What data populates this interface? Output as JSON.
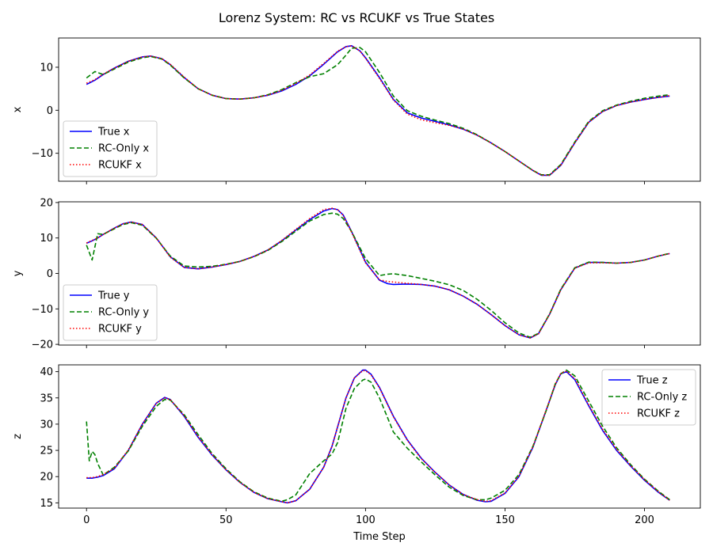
{
  "chart_data": {
    "type": "line",
    "title": "Lorenz System: RC vs RCUKF vs True States",
    "xlabel": "Time Step",
    "xlim": [
      -10,
      220
    ],
    "xticks": [
      0,
      50,
      100,
      150,
      200
    ],
    "sharex": true,
    "grid": false,
    "colors": {
      "true": "#0000ff",
      "rc_only": "#008000",
      "rcukf": "#ff0000"
    },
    "panels": [
      {
        "ylabel": "x",
        "ylim": [
          -16.5,
          16.8
        ],
        "yticks": [
          -10,
          0,
          10
        ],
        "legend_position": "lower-left",
        "x": [
          0,
          3,
          6,
          10,
          15,
          20,
          23,
          27,
          30,
          35,
          40,
          45,
          50,
          55,
          60,
          65,
          70,
          75,
          80,
          85,
          90,
          93,
          95,
          98,
          100,
          105,
          110,
          115,
          120,
          125,
          130,
          135,
          140,
          145,
          150,
          155,
          160,
          163,
          166,
          170,
          175,
          180,
          185,
          190,
          195,
          200,
          205,
          209
        ],
        "series": [
          {
            "name": "True x",
            "style": "solid",
            "values": [
              6.0,
              7.0,
              8.3,
              9.8,
              11.4,
              12.4,
              12.6,
              12.0,
              10.6,
              7.6,
              5.0,
              3.5,
              2.7,
              2.6,
              2.9,
              3.5,
              4.5,
              6.0,
              8.0,
              10.7,
              13.6,
              14.8,
              15.0,
              13.8,
              12.2,
              7.6,
              2.5,
              -0.6,
              -1.8,
              -2.6,
              -3.4,
              -4.4,
              -5.8,
              -7.6,
              -9.6,
              -11.8,
              -14.0,
              -15.1,
              -15.1,
              -12.8,
              -7.6,
              -2.8,
              -0.3,
              1.1,
              1.9,
              2.5,
              3.0,
              3.3
            ]
          },
          {
            "name": "RC-Only x",
            "style": "dashed",
            "values": [
              7.5,
              9.0,
              8.3,
              9.6,
              11.2,
              12.2,
              12.5,
              11.9,
              10.5,
              7.5,
              5.0,
              3.5,
              2.7,
              2.6,
              2.9,
              3.6,
              4.8,
              6.4,
              7.8,
              8.5,
              10.6,
              12.8,
              14.4,
              14.6,
              13.6,
              8.8,
              3.3,
              -0.1,
              -1.4,
              -2.3,
              -3.1,
              -4.2,
              -5.7,
              -7.6,
              -9.6,
              -11.8,
              -14.0,
              -15.0,
              -15.0,
              -12.6,
              -7.4,
              -2.6,
              -0.1,
              1.2,
              2.1,
              2.8,
              3.3,
              3.6
            ]
          },
          {
            "name": "RCUKF x",
            "style": "dotted",
            "values": [
              6.3,
              7.1,
              8.4,
              9.8,
              11.4,
              12.4,
              12.6,
              12.0,
              10.7,
              7.7,
              5.0,
              3.5,
              2.7,
              2.6,
              2.9,
              3.5,
              4.6,
              6.2,
              8.2,
              10.9,
              13.7,
              14.8,
              15.0,
              13.8,
              12.1,
              7.4,
              2.4,
              -0.9,
              -2.2,
              -2.9,
              -3.5,
              -4.4,
              -5.8,
              -7.6,
              -9.6,
              -11.8,
              -14.0,
              -15.1,
              -15.1,
              -12.8,
              -7.6,
              -2.8,
              -0.3,
              1.1,
              1.9,
              2.5,
              3.0,
              3.4
            ]
          }
        ]
      },
      {
        "ylabel": "y",
        "ylim": [
          -20.2,
          20.2
        ],
        "yticks": [
          -20,
          -10,
          0,
          10,
          20
        ],
        "legend_position": "lower-left",
        "x": [
          0,
          2,
          4,
          6,
          10,
          13,
          16,
          20,
          25,
          30,
          35,
          40,
          45,
          50,
          55,
          60,
          65,
          70,
          75,
          80,
          85,
          88,
          90,
          92,
          95,
          100,
          105,
          108,
          110,
          115,
          120,
          125,
          130,
          135,
          140,
          145,
          150,
          155,
          159,
          162,
          166,
          170,
          175,
          180,
          185,
          190,
          195,
          200,
          205,
          209
        ],
        "series": [
          {
            "name": "True y",
            "style": "solid",
            "values": [
              8.5,
              9.2,
              10.0,
              11.0,
              12.8,
              14.0,
              14.5,
              13.8,
              10.0,
              4.7,
              1.7,
              1.3,
              1.8,
              2.5,
              3.4,
              4.8,
              6.6,
              9.2,
              12.2,
              15.2,
              17.6,
              18.3,
              18.0,
              16.5,
              11.8,
              3.2,
              -1.9,
              -2.9,
              -3.1,
              -3.0,
              -3.1,
              -3.6,
              -4.6,
              -6.4,
              -8.7,
              -11.6,
              -14.7,
              -17.3,
              -18.2,
              -17.0,
              -11.5,
              -4.6,
              1.5,
              3.1,
              3.1,
              2.9,
              3.1,
              3.8,
              4.9,
              5.6
            ]
          },
          {
            "name": "RC-Only y",
            "style": "dashed",
            "values": [
              8.0,
              3.8,
              11.2,
              11.0,
              12.6,
              13.8,
              14.3,
              13.6,
              9.9,
              4.9,
              2.1,
              1.8,
              2.0,
              2.6,
              3.4,
              4.7,
              6.5,
              9.0,
              11.9,
              14.8,
              16.6,
              17.0,
              16.7,
              15.5,
              11.8,
              4.2,
              -0.6,
              -0.2,
              -0.1,
              -0.6,
              -1.4,
              -2.2,
              -3.2,
              -4.8,
              -7.3,
              -10.4,
              -13.9,
              -16.8,
              -18.0,
              -16.9,
              -11.4,
              -4.4,
              1.6,
              3.2,
              3.1,
              2.9,
              3.1,
              3.8,
              4.9,
              5.7
            ]
          },
          {
            "name": "RCUKF y",
            "style": "dotted",
            "values": [
              8.6,
              9.3,
              10.0,
              11.0,
              12.8,
              14.0,
              14.5,
              13.8,
              10.0,
              4.6,
              1.7,
              1.3,
              1.8,
              2.5,
              3.4,
              4.8,
              6.6,
              9.3,
              12.4,
              15.5,
              18.0,
              18.4,
              18.0,
              16.4,
              11.6,
              3.0,
              -1.8,
              -2.3,
              -2.4,
              -2.8,
              -3.1,
              -3.6,
              -4.6,
              -6.4,
              -8.7,
              -11.6,
              -14.7,
              -17.3,
              -18.2,
              -17.0,
              -11.5,
              -4.6,
              1.5,
              3.0,
              3.0,
              2.9,
              3.1,
              3.8,
              4.9,
              5.6
            ]
          }
        ]
      },
      {
        "ylabel": "z",
        "ylim": [
          14.0,
          41.3
        ],
        "yticks": [
          15,
          20,
          25,
          30,
          35,
          40
        ],
        "legend_position": "upper-right",
        "x": [
          0,
          1,
          2,
          3,
          4,
          6,
          10,
          15,
          20,
          25,
          28,
          30,
          35,
          40,
          45,
          50,
          55,
          60,
          65,
          70,
          72,
          75,
          80,
          85,
          88,
          90,
          93,
          96,
          99,
          100,
          102,
          105,
          110,
          115,
          120,
          125,
          130,
          135,
          140,
          143,
          145,
          150,
          155,
          160,
          165,
          168,
          170,
          172,
          175,
          180,
          185,
          190,
          195,
          200,
          205,
          209
        ],
        "series": [
          {
            "name": "True z",
            "style": "solid",
            "values": [
              19.7,
              19.7,
              19.7,
              19.8,
              19.9,
              20.2,
              21.5,
              25.0,
              30.0,
              34.0,
              35.1,
              34.7,
              31.5,
              27.5,
              24.1,
              21.3,
              18.9,
              17.0,
              15.8,
              15.2,
              15.0,
              15.4,
              17.6,
              21.8,
              25.8,
              29.5,
              35.0,
              38.8,
              40.3,
              40.3,
              39.5,
              37.0,
              31.5,
              27.0,
              23.5,
              20.8,
              18.4,
              16.6,
              15.5,
              15.2,
              15.3,
              16.8,
              20.0,
              25.6,
              33.0,
              37.5,
              39.6,
              40.0,
              38.5,
              33.5,
              28.8,
              25.0,
              22.0,
              19.3,
              17.0,
              15.5
            ]
          },
          {
            "name": "RC-Only z",
            "style": "dashed",
            "values": [
              30.5,
              23.0,
              24.8,
              24.2,
              22.5,
              20.3,
              21.8,
              24.9,
              29.6,
              33.4,
              34.7,
              34.6,
              31.8,
              28.0,
              24.4,
              21.5,
              19.0,
              17.1,
              15.9,
              15.3,
              15.6,
              16.5,
              20.6,
              23.0,
              24.3,
              26.5,
              33.0,
              36.8,
              38.4,
              38.6,
              38.0,
              35.0,
              28.5,
              25.4,
              22.8,
              20.3,
              18.0,
              16.4,
              15.6,
              15.6,
              15.9,
              17.4,
              20.4,
              25.8,
              32.9,
              37.7,
              39.6,
              40.3,
              39.2,
              34.4,
              29.6,
              25.5,
              22.3,
              19.5,
              17.2,
              15.6
            ]
          },
          {
            "name": "RCUKF z",
            "style": "dotted",
            "values": [
              19.8,
              19.8,
              19.8,
              19.9,
              20.0,
              20.4,
              21.6,
              25.1,
              30.0,
              34.0,
              35.0,
              34.7,
              31.6,
              27.6,
              24.2,
              21.3,
              18.9,
              17.0,
              15.8,
              15.2,
              15.0,
              15.4,
              17.6,
              21.8,
              25.8,
              29.5,
              35.0,
              38.8,
              40.2,
              40.2,
              39.4,
              36.9,
              31.4,
              26.9,
              23.4,
              20.8,
              18.4,
              16.6,
              15.6,
              15.3,
              15.4,
              16.9,
              20.1,
              25.7,
              33.1,
              37.6,
              39.7,
              40.1,
              38.7,
              33.7,
              29.0,
              25.2,
              22.1,
              19.4,
              17.1,
              15.5
            ]
          }
        ]
      }
    ]
  }
}
